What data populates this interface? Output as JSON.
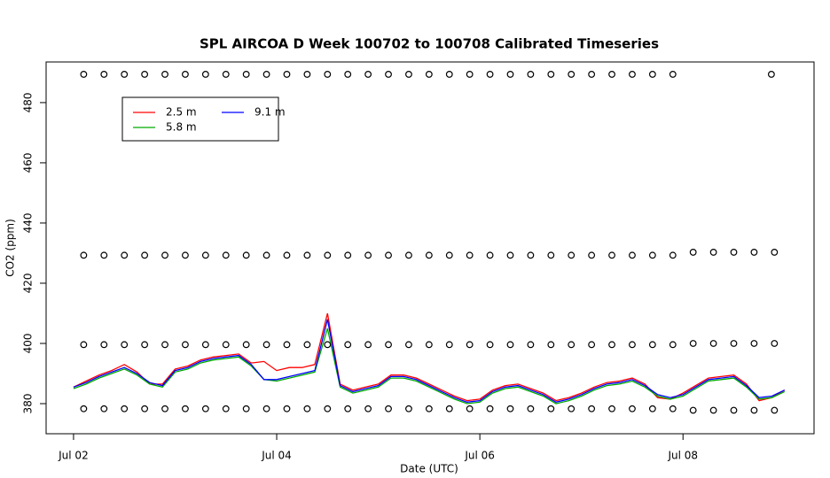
{
  "chart_data": {
    "type": "line",
    "title": "SPL AIRCOA D  Week 100702 to 100708  Calibrated Timeseries",
    "xlabel": "Date (UTC)",
    "ylabel": "CO2 (ppm)",
    "xlim": [
      1.73,
      9.29
    ],
    "ylim": [
      370,
      493.5
    ],
    "xticks": [
      {
        "value": 2,
        "label": "Jul 02"
      },
      {
        "value": 4,
        "label": "Jul 04"
      },
      {
        "value": 6,
        "label": "Jul 06"
      },
      {
        "value": 8,
        "label": "Jul 08"
      }
    ],
    "yticks": [
      380,
      400,
      420,
      440,
      460,
      480
    ],
    "legend": "topleft",
    "series": [
      {
        "name": "2.5 m",
        "color": "#ff0000",
        "style": "line",
        "x": [
          2,
          2.125,
          2.25,
          2.375,
          2.5,
          2.625,
          2.75,
          2.875,
          3,
          3.125,
          3.25,
          3.375,
          3.5,
          3.625,
          3.75,
          3.875,
          4,
          4.125,
          4.25,
          4.375,
          4.5,
          4.625,
          4.75,
          4.875,
          5,
          5.125,
          5.25,
          5.375,
          5.5,
          5.625,
          5.75,
          5.875,
          6,
          6.125,
          6.25,
          6.375,
          6.5,
          6.625,
          6.75,
          6.875,
          7,
          7.125,
          7.25,
          7.375,
          7.5,
          7.625,
          7.75,
          7.875,
          8,
          8.125,
          8.25,
          8.375,
          8.5,
          8.625,
          8.75,
          8.875,
          9
        ],
        "values": [
          385.5,
          387.5,
          389.5,
          391,
          393,
          390.5,
          386.5,
          386.5,
          391.5,
          392.5,
          394.5,
          395.5,
          396,
          396.5,
          393.5,
          394,
          391,
          392,
          392,
          393,
          410,
          386.5,
          384.5,
          385.5,
          386.5,
          389.5,
          389.5,
          388.5,
          386.5,
          384.5,
          382.5,
          381,
          381.5,
          384.5,
          386,
          386.5,
          385,
          383.5,
          381,
          382,
          383.5,
          385.5,
          387,
          387.5,
          388.5,
          386.5,
          382,
          381.5,
          383.5,
          386,
          388.5,
          389,
          389.5,
          386.5,
          381,
          382,
          384.5
        ]
      },
      {
        "name": "5.8 m",
        "color": "#00aa00",
        "style": "line",
        "x": [
          2,
          2.125,
          2.25,
          2.375,
          2.5,
          2.625,
          2.75,
          2.875,
          3,
          3.125,
          3.25,
          3.375,
          3.5,
          3.625,
          3.75,
          3.875,
          4,
          4.125,
          4.25,
          4.375,
          4.5,
          4.625,
          4.75,
          4.875,
          5,
          5.125,
          5.25,
          5.375,
          5.5,
          5.625,
          5.75,
          5.875,
          6,
          6.125,
          6.25,
          6.375,
          6.5,
          6.625,
          6.75,
          6.875,
          7,
          7.125,
          7.25,
          7.375,
          7.5,
          7.625,
          7.75,
          7.875,
          8,
          8.125,
          8.25,
          8.375,
          8.5,
          8.625,
          8.75,
          8.875,
          9
        ],
        "values": [
          385,
          386.5,
          388.5,
          390,
          391.5,
          389.5,
          386.5,
          385.5,
          390.5,
          391.5,
          393.5,
          394.5,
          395,
          395.5,
          392.5,
          388,
          387.5,
          388.5,
          389.5,
          390.5,
          405,
          385.5,
          383.5,
          384.5,
          385.5,
          388.5,
          388.5,
          387.5,
          385.5,
          383.5,
          381.5,
          380,
          380.5,
          383.5,
          385,
          385.5,
          384,
          382.5,
          380,
          381,
          382.5,
          384.5,
          386,
          386.5,
          387.5,
          385.5,
          382.5,
          381.5,
          382.5,
          385,
          387.5,
          388,
          388.5,
          385.5,
          381.5,
          382,
          384
        ]
      },
      {
        "name": "9.1 m",
        "color": "#0000ff",
        "style": "line",
        "x": [
          2,
          2.125,
          2.25,
          2.375,
          2.5,
          2.625,
          2.75,
          2.875,
          3,
          3.125,
          3.25,
          3.375,
          3.5,
          3.625,
          3.75,
          3.875,
          4,
          4.125,
          4.25,
          4.375,
          4.5,
          4.625,
          4.75,
          4.875,
          5,
          5.125,
          5.25,
          5.375,
          5.5,
          5.625,
          5.75,
          5.875,
          6,
          6.125,
          6.25,
          6.375,
          6.5,
          6.625,
          6.75,
          6.875,
          7,
          7.125,
          7.25,
          7.375,
          7.5,
          7.625,
          7.75,
          7.875,
          8,
          8.125,
          8.25,
          8.375,
          8.5,
          8.625,
          8.75,
          8.875,
          9
        ],
        "values": [
          385.5,
          387,
          389,
          390.5,
          392,
          390,
          387,
          386,
          391,
          392,
          394,
          395,
          395.5,
          396,
          393,
          388,
          388,
          389,
          390,
          391,
          408,
          386,
          384,
          385,
          386,
          389,
          389,
          388,
          386,
          384,
          382,
          380.5,
          381,
          384,
          385.5,
          386,
          384.5,
          383,
          380.5,
          381.5,
          383,
          385,
          386.5,
          387,
          388,
          386,
          383,
          382,
          383,
          385.5,
          388,
          388.5,
          389,
          386,
          382,
          382.5,
          384.5
        ]
      },
      {
        "color": "#000000",
        "style": "points",
        "x": [
          2.1,
          2.3,
          2.5,
          2.7,
          2.9,
          3.1,
          3.3,
          3.5,
          3.7,
          3.9,
          4.1,
          4.3,
          4.5,
          4.7,
          4.9,
          5.1,
          5.3,
          5.5,
          5.7,
          5.9,
          6.1,
          6.3,
          6.5,
          6.7,
          6.9,
          7.1,
          7.3,
          7.5,
          7.7,
          7.9,
          8.87
        ],
        "values": [
          489.4,
          489.4,
          489.4,
          489.4,
          489.4,
          489.4,
          489.4,
          489.4,
          489.4,
          489.4,
          489.4,
          489.4,
          489.4,
          489.4,
          489.4,
          489.4,
          489.4,
          489.4,
          489.4,
          489.4,
          489.4,
          489.4,
          489.4,
          489.4,
          489.4,
          489.4,
          489.4,
          489.4,
          489.4,
          489.4,
          489.4
        ]
      },
      {
        "color": "#000000",
        "style": "points",
        "x": [
          2.1,
          2.3,
          2.5,
          2.7,
          2.9,
          3.1,
          3.3,
          3.5,
          3.7,
          3.9,
          4.1,
          4.3,
          4.5,
          4.7,
          4.9,
          5.1,
          5.3,
          5.5,
          5.7,
          5.9,
          6.1,
          6.3,
          6.5,
          6.7,
          6.9,
          7.1,
          7.3,
          7.5,
          7.7,
          7.9,
          8.1,
          8.3,
          8.5,
          8.7,
          8.9
        ],
        "values": [
          429.3,
          429.3,
          429.3,
          429.3,
          429.3,
          429.3,
          429.3,
          429.3,
          429.3,
          429.3,
          429.3,
          429.3,
          429.3,
          429.3,
          429.3,
          429.3,
          429.3,
          429.3,
          429.3,
          429.3,
          429.3,
          429.3,
          429.3,
          429.3,
          429.3,
          429.3,
          429.3,
          429.3,
          429.3,
          429.3,
          430.3,
          430.3,
          430.3,
          430.3,
          430.3
        ]
      },
      {
        "color": "#000000",
        "style": "points",
        "x": [
          2.1,
          2.3,
          2.5,
          2.7,
          2.9,
          3.1,
          3.3,
          3.5,
          3.7,
          3.9,
          4.1,
          4.3,
          4.5,
          4.7,
          4.9,
          5.1,
          5.3,
          5.5,
          5.7,
          5.9,
          6.1,
          6.3,
          6.5,
          6.7,
          6.9,
          7.1,
          7.3,
          7.5,
          7.7,
          7.9,
          8.1,
          8.3,
          8.5,
          8.7,
          8.9
        ],
        "values": [
          399.6,
          399.6,
          399.6,
          399.6,
          399.6,
          399.6,
          399.6,
          399.6,
          399.6,
          399.6,
          399.6,
          399.6,
          399.6,
          399.6,
          399.6,
          399.6,
          399.6,
          399.6,
          399.6,
          399.6,
          399.6,
          399.6,
          399.6,
          399.6,
          399.6,
          399.6,
          399.6,
          399.6,
          399.6,
          399.6,
          400,
          400,
          400,
          400,
          400
        ]
      },
      {
        "color": "#000000",
        "style": "points",
        "x": [
          2.1,
          2.3,
          2.5,
          2.7,
          2.9,
          3.1,
          3.3,
          3.5,
          3.7,
          3.9,
          4.1,
          4.3,
          4.5,
          4.7,
          4.9,
          5.1,
          5.3,
          5.5,
          5.7,
          5.9,
          6.1,
          6.3,
          6.5,
          6.7,
          6.9,
          7.1,
          7.3,
          7.5,
          7.7,
          7.9,
          8.1,
          8.3,
          8.5,
          8.7,
          8.9
        ],
        "values": [
          378.3,
          378.3,
          378.3,
          378.3,
          378.3,
          378.3,
          378.3,
          378.3,
          378.3,
          378.3,
          378.3,
          378.3,
          378.3,
          378.3,
          378.3,
          378.3,
          378.3,
          378.3,
          378.3,
          378.3,
          378.3,
          378.3,
          378.3,
          378.3,
          378.3,
          378.3,
          378.3,
          378.3,
          378.3,
          378.3,
          377.8,
          377.8,
          377.8,
          377.8,
          377.8
        ]
      }
    ]
  }
}
